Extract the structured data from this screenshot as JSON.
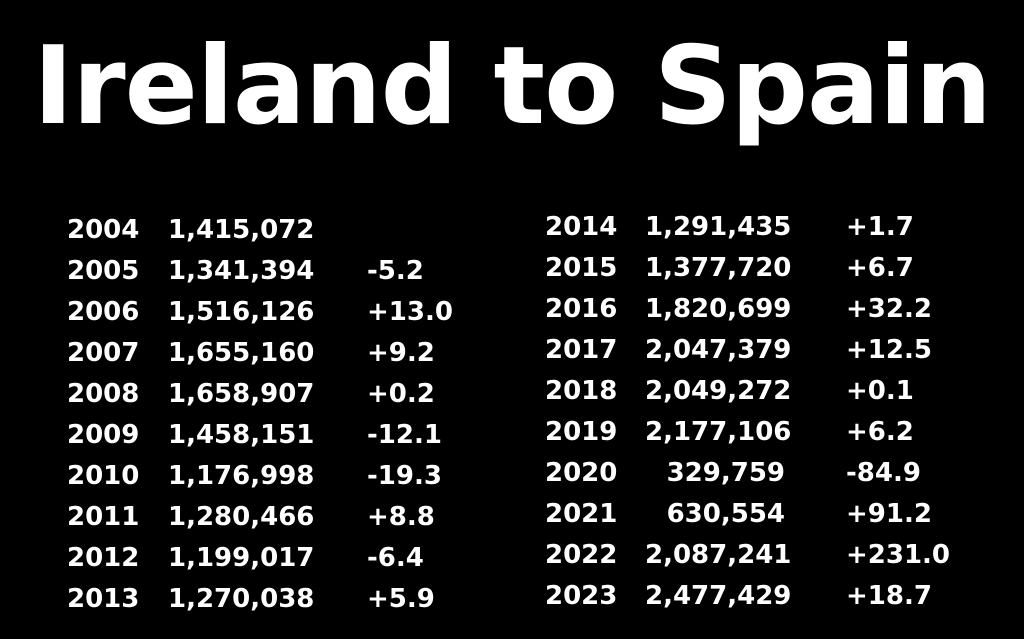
{
  "title": "Ireland to Spain",
  "left_table": {
    "rows": [
      {
        "year": "2004",
        "value": "1,415,072",
        "change": ""
      },
      {
        "year": "2005",
        "value": "1,341,394",
        "change": "-5.2"
      },
      {
        "year": "2006",
        "value": "1,516,126",
        "change": "+13.0"
      },
      {
        "year": "2007",
        "value": "1,655,160",
        "change": "+9.2"
      },
      {
        "year": "2008",
        "value": "1,658,907",
        "change": "+0.2"
      },
      {
        "year": "2009",
        "value": "1,458,151",
        "change": "-12.1"
      },
      {
        "year": "2010",
        "value": "1,176,998",
        "change": "-19.3"
      },
      {
        "year": "2011",
        "value": "1,280,466",
        "change": "+8.8"
      },
      {
        "year": "2012",
        "value": "1,199,017",
        "change": "-6.4"
      },
      {
        "year": "2013",
        "value": "1,270,038",
        "change": "+5.9"
      }
    ]
  },
  "right_table": {
    "rows": [
      {
        "year": "2014",
        "value": "1,291,435",
        "change": "+1.7"
      },
      {
        "year": "2015",
        "value": "1,377,720",
        "change": "+6.7"
      },
      {
        "year": "2016",
        "value": "1,820,699",
        "change": "+32.2"
      },
      {
        "year": "2017",
        "value": "2,047,379",
        "change": "+12.5"
      },
      {
        "year": "2018",
        "value": "2,049,272",
        "change": "+0.1"
      },
      {
        "year": "2019",
        "value": "2,177,106",
        "change": "+6.2"
      },
      {
        "year": "2020",
        "value": "329,759",
        "change": "-84.9"
      },
      {
        "year": "2021",
        "value": "630,554",
        "change": "+91.2"
      },
      {
        "year": "2022",
        "value": "2,087,241",
        "change": "+231.0"
      },
      {
        "year": "2023",
        "value": "2,477,429",
        "change": "+18.7"
      }
    ]
  }
}
